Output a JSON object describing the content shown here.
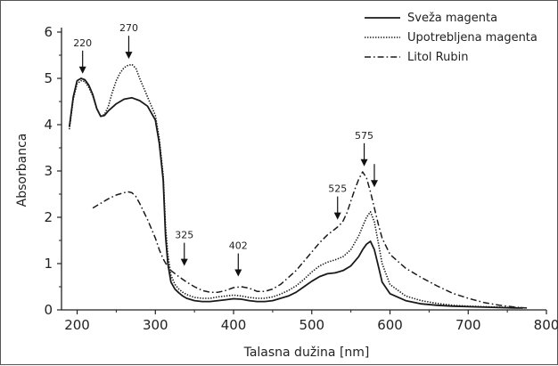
{
  "chart_data": {
    "type": "line",
    "xlabel": "Talasna dužina [nm]",
    "ylabel": "Absorbanca",
    "xlim": [
      180,
      800
    ],
    "ylim": [
      0,
      6
    ],
    "xticks": [
      200,
      300,
      400,
      500,
      600,
      700,
      800
    ],
    "yticks": [
      0,
      1,
      2,
      3,
      4,
      5,
      6
    ],
    "legend_position": "top-right",
    "series": [
      {
        "name": "Sveža magenta",
        "style": "solid",
        "x": [
          190,
          195,
          200,
          205,
          210,
          215,
          220,
          225,
          230,
          235,
          240,
          250,
          260,
          270,
          280,
          290,
          300,
          305,
          310,
          313,
          316,
          320,
          325,
          330,
          335,
          340,
          350,
          360,
          370,
          380,
          390,
          400,
          410,
          420,
          430,
          440,
          450,
          460,
          470,
          480,
          490,
          500,
          510,
          520,
          530,
          540,
          550,
          555,
          560,
          565,
          570,
          575,
          580,
          585,
          590,
          600,
          620,
          640,
          660,
          680,
          700,
          720,
          740,
          760,
          770
        ],
        "y": [
          3.95,
          4.6,
          4.95,
          5.0,
          4.97,
          4.85,
          4.65,
          4.35,
          4.18,
          4.2,
          4.3,
          4.45,
          4.55,
          4.58,
          4.52,
          4.4,
          4.1,
          3.6,
          2.8,
          1.6,
          1.0,
          0.6,
          0.45,
          0.37,
          0.3,
          0.25,
          0.2,
          0.18,
          0.18,
          0.2,
          0.22,
          0.24,
          0.23,
          0.2,
          0.18,
          0.18,
          0.2,
          0.25,
          0.3,
          0.38,
          0.5,
          0.62,
          0.72,
          0.78,
          0.8,
          0.85,
          0.95,
          1.05,
          1.15,
          1.3,
          1.42,
          1.48,
          1.3,
          0.95,
          0.6,
          0.35,
          0.2,
          0.13,
          0.1,
          0.08,
          0.07,
          0.06,
          0.05,
          0.04,
          0.04
        ]
      },
      {
        "name": "Upotrebljena magenta",
        "style": "dotted",
        "x": [
          190,
          195,
          200,
          205,
          210,
          215,
          220,
          225,
          230,
          235,
          240,
          245,
          250,
          255,
          260,
          265,
          270,
          275,
          280,
          290,
          300,
          305,
          310,
          313,
          316,
          320,
          325,
          330,
          335,
          340,
          350,
          360,
          370,
          380,
          390,
          400,
          410,
          420,
          430,
          440,
          450,
          460,
          470,
          480,
          490,
          500,
          510,
          520,
          530,
          540,
          550,
          555,
          560,
          565,
          570,
          575,
          580,
          585,
          590,
          600,
          620,
          640,
          660,
          680,
          700,
          720,
          740,
          760,
          770
        ],
        "y": [
          3.9,
          4.55,
          4.88,
          4.95,
          4.93,
          4.8,
          4.62,
          4.35,
          4.18,
          4.22,
          4.4,
          4.7,
          4.95,
          5.12,
          5.23,
          5.28,
          5.3,
          5.22,
          5.0,
          4.6,
          4.2,
          3.7,
          2.9,
          1.8,
          1.2,
          0.75,
          0.55,
          0.45,
          0.38,
          0.33,
          0.27,
          0.25,
          0.25,
          0.28,
          0.3,
          0.32,
          0.3,
          0.27,
          0.25,
          0.25,
          0.28,
          0.34,
          0.42,
          0.52,
          0.66,
          0.82,
          0.95,
          1.03,
          1.08,
          1.15,
          1.3,
          1.45,
          1.6,
          1.8,
          2.0,
          2.12,
          1.9,
          1.45,
          1.0,
          0.55,
          0.3,
          0.2,
          0.14,
          0.1,
          0.08,
          0.07,
          0.06,
          0.05,
          0.05
        ]
      },
      {
        "name": "Litol Rubin",
        "style": "dashdot",
        "x": [
          220,
          230,
          240,
          250,
          260,
          265,
          270,
          275,
          280,
          290,
          300,
          305,
          310,
          315,
          320,
          330,
          340,
          350,
          360,
          370,
          380,
          390,
          400,
          410,
          420,
          430,
          440,
          450,
          460,
          470,
          480,
          490,
          500,
          510,
          520,
          530,
          535,
          540,
          545,
          550,
          555,
          560,
          565,
          570,
          575,
          580,
          585,
          590,
          600,
          610,
          620,
          640,
          660,
          680,
          700,
          720,
          740,
          760,
          775
        ],
        "y": [
          2.2,
          2.3,
          2.4,
          2.48,
          2.53,
          2.55,
          2.53,
          2.45,
          2.3,
          1.95,
          1.55,
          1.3,
          1.1,
          0.95,
          0.85,
          0.72,
          0.6,
          0.5,
          0.42,
          0.38,
          0.38,
          0.42,
          0.48,
          0.5,
          0.47,
          0.4,
          0.4,
          0.45,
          0.55,
          0.7,
          0.85,
          1.05,
          1.25,
          1.45,
          1.62,
          1.75,
          1.82,
          1.92,
          2.1,
          2.35,
          2.6,
          2.82,
          2.98,
          2.85,
          2.55,
          2.2,
          1.85,
          1.55,
          1.2,
          1.05,
          0.9,
          0.7,
          0.52,
          0.36,
          0.25,
          0.16,
          0.1,
          0.06,
          0.04
        ]
      }
    ],
    "annotations": [
      {
        "text": "220",
        "x": 207,
        "y_tip": 5.1
      },
      {
        "text": "270",
        "x": 266,
        "y_tip": 5.42
      },
      {
        "text": "325",
        "x": 337,
        "y_tip": 0.95
      },
      {
        "text": "402",
        "x": 406,
        "y_tip": 0.72
      },
      {
        "text": "525",
        "x": 533,
        "y_tip": 1.95
      },
      {
        "text": "575",
        "x": 567,
        "y_tip": 3.1
      },
      {
        "text": "",
        "x": 580,
        "y_tip": 2.65
      }
    ]
  }
}
